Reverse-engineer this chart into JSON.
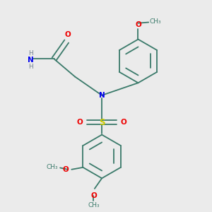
{
  "bg_color": "#ebebeb",
  "bond_color": "#3a7a6a",
  "bond_width": 1.3,
  "N_color": "#0000ee",
  "O_color": "#ee0000",
  "S_color": "#cccc00",
  "H_color": "#708090",
  "fs": 7.5,
  "fs_small": 6.5,
  "fig_w": 3.0,
  "fig_h": 3.0,
  "dpi": 100,
  "xlim": [
    0,
    10
  ],
  "ylim": [
    0,
    10
  ]
}
